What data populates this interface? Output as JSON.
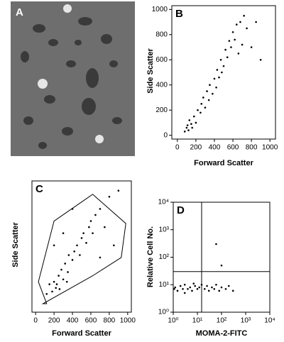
{
  "image_panel": {
    "label": "A"
  },
  "chart_data": [
    {
      "type": "scatter",
      "panel_label": "B",
      "x_label": "Forward Scatter",
      "y_label": "Side Scatter",
      "xlim": [
        -60,
        1060
      ],
      "ylim": [
        -30,
        1030
      ],
      "xticks": [
        0,
        200,
        400,
        600,
        800,
        1000
      ],
      "yticks": [
        0,
        200,
        400,
        600,
        800,
        1000
      ],
      "color": "#000000",
      "x": [
        80,
        100,
        120,
        150,
        130,
        180,
        200,
        220,
        250,
        260,
        280,
        300,
        320,
        340,
        350,
        380,
        400,
        420,
        430,
        450,
        470,
        480,
        500,
        520,
        540,
        560,
        580,
        600,
        620,
        640,
        660,
        680,
        700,
        720,
        750,
        800,
        850,
        900,
        160,
        110
      ],
      "values": [
        30,
        60,
        40,
        90,
        120,
        150,
        100,
        200,
        180,
        250,
        300,
        220,
        350,
        280,
        400,
        330,
        450,
        380,
        520,
        460,
        600,
        500,
        550,
        680,
        620,
        750,
        700,
        820,
        760,
        880,
        650,
        900,
        720,
        950,
        850,
        700,
        900,
        600,
        60,
        80
      ]
    },
    {
      "type": "scatter",
      "panel_label": "C",
      "x_label": "Forward Scatter",
      "y_label": "Side Scatter",
      "xlim": [
        -40,
        1040
      ],
      "ylim": [
        -50,
        1030
      ],
      "xticks": [
        0,
        200,
        400,
        600,
        800,
        1000
      ],
      "color": "#000000",
      "x": [
        150,
        180,
        200,
        220,
        250,
        230,
        280,
        300,
        320,
        350,
        360,
        400,
        420,
        450,
        480,
        500,
        520,
        550,
        580,
        600,
        620,
        650,
        700,
        750,
        800,
        300,
        200,
        850,
        400,
        900,
        120,
        700,
        260,
        340
      ],
      "values": [
        180,
        120,
        200,
        150,
        250,
        180,
        300,
        220,
        350,
        280,
        420,
        380,
        450,
        500,
        420,
        560,
        600,
        520,
        650,
        700,
        600,
        750,
        800,
        650,
        900,
        600,
        500,
        500,
        800,
        950,
        100,
        400,
        140,
        200
      ],
      "gate": {
        "x": [
          120,
          30,
          200,
          620,
          980,
          930,
          620,
          80
        ],
        "y": [
          20,
          200,
          700,
          920,
          680,
          400,
          250,
          20
        ]
      }
    },
    {
      "type": "scatter",
      "panel_label": "D",
      "x_label": "MOMA-2-FITC",
      "y_label": "Relative Cell No.",
      "log_x": true,
      "log_y": true,
      "xlim": [
        1,
        10000
      ],
      "ylim": [
        1,
        10000
      ],
      "xticks": [
        {
          "value": 1,
          "label": "10⁰"
        },
        {
          "value": 10,
          "label": "10¹"
        },
        {
          "value": 100,
          "label": "10²"
        },
        {
          "value": 1000,
          "label": "10³"
        },
        {
          "value": 10000,
          "label": "10⁴"
        }
      ],
      "yticks": [
        {
          "value": 1,
          "label": "10⁰"
        },
        {
          "value": 10,
          "label": "10¹"
        },
        {
          "value": 100,
          "label": "10²"
        },
        {
          "value": 1000,
          "label": "10³"
        },
        {
          "value": 10000,
          "label": "10⁴"
        }
      ],
      "quadrant": {
        "x": 15,
        "y": 30
      },
      "color": "#000000",
      "x": [
        1.2,
        1.5,
        2,
        2.5,
        3,
        4,
        5,
        6,
        8,
        10,
        12,
        15,
        20,
        25,
        30,
        40,
        50,
        60,
        80,
        100,
        150,
        200,
        300,
        3,
        7,
        60,
        100,
        1.1
      ],
      "values": [
        8,
        6,
        9,
        7,
        10,
        7,
        8,
        6,
        9,
        7,
        8,
        10,
        7,
        9,
        6,
        8,
        7,
        10,
        6,
        8,
        7,
        9,
        6,
        5,
        11,
        300,
        50,
        7
      ]
    }
  ]
}
